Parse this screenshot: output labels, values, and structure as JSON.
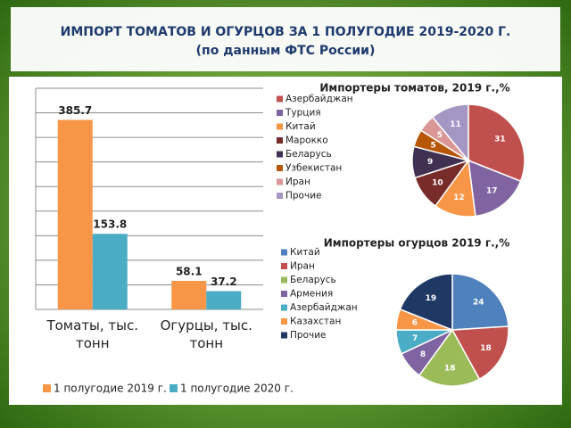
{
  "header": {
    "title": "ИМПОРТ ТОМАТОВ И ОГУРЦОВ ЗА 1 ПОЛУГОДИЕ 2019-2020 Г.",
    "subtitle": "(по данным ФТС России)"
  },
  "chart_data": [
    {
      "type": "bar",
      "categories": [
        "Томаты, тыс. тонн",
        "Огурцы, тыс. тонн"
      ],
      "series": [
        {
          "name": "1 полугодие 2019 г.",
          "color": "#f79646",
          "values": [
            385.7,
            58.1
          ]
        },
        {
          "name": "1 полугодие 2020 г.",
          "color": "#4bacc6",
          "values": [
            153.8,
            37.2
          ]
        }
      ],
      "ylim": [
        0,
        450
      ],
      "yticks": [
        0,
        50,
        100,
        150,
        200,
        250,
        300,
        350,
        400,
        450
      ],
      "grid": true
    },
    {
      "type": "pie",
      "title": "Импортеры томатов, 2019 г.,%",
      "categories": [
        "Азербайджан",
        "Турция",
        "Китай",
        "Марокко",
        "Беларусь",
        "Узбекистан",
        "Иран",
        "Прочие"
      ],
      "values": [
        31,
        17,
        12,
        10,
        9,
        5,
        5,
        11
      ],
      "colors": [
        "#c0504d",
        "#8064a2",
        "#f79646",
        "#772c2a",
        "#403152",
        "#b65708",
        "#d99694",
        "#a597c3"
      ]
    },
    {
      "type": "pie",
      "title": "Импортеры огурцов 2019 г.,%",
      "categories": [
        "Китай",
        "Иран",
        "Беларусь",
        "Армения",
        "Азербайджан",
        "Казахстан",
        "Прочие"
      ],
      "values": [
        24,
        18,
        18,
        8,
        7,
        6,
        19
      ],
      "colors": [
        "#4f81bd",
        "#c0504d",
        "#9bbb59",
        "#8064a2",
        "#4bacc6",
        "#f79646",
        "#1f3864"
      ]
    }
  ]
}
